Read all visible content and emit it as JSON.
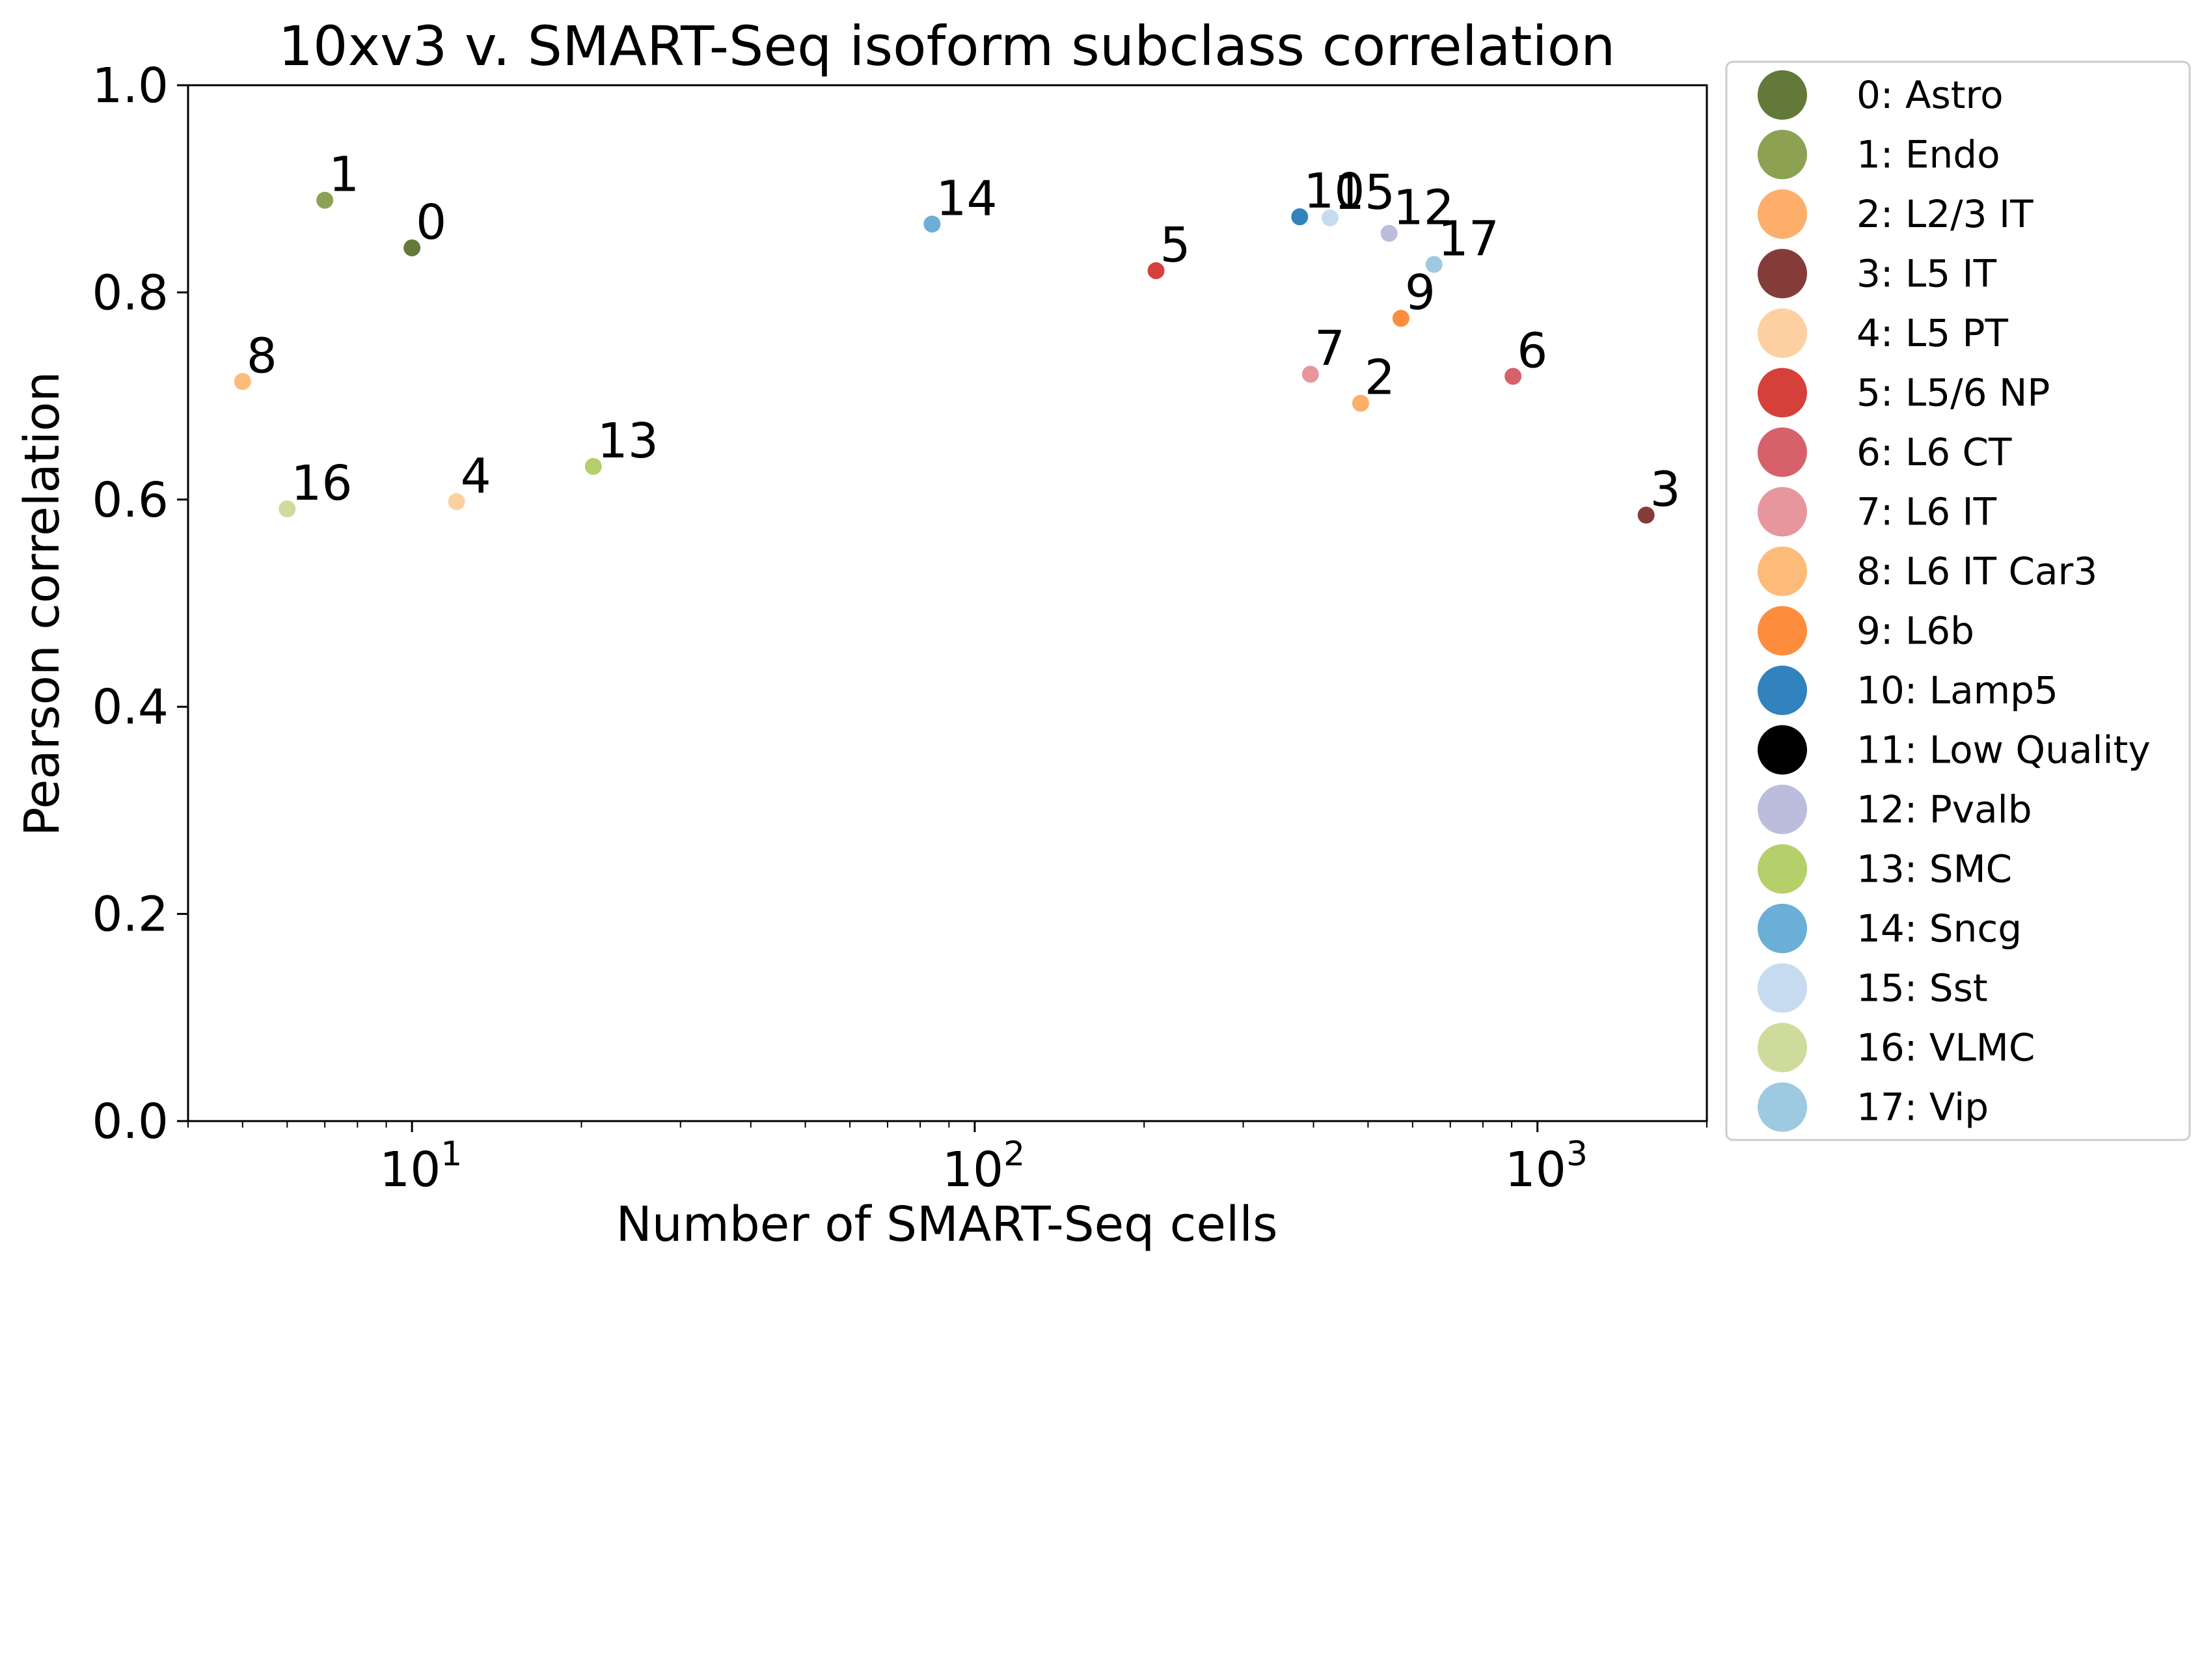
{
  "chart_data": {
    "type": "scatter",
    "title": "10xv3 v. SMART-Seq isoform subclass correlation",
    "xlabel": "Number of SMART-Seq cells",
    "ylabel": "Pearson correlation",
    "xscale": "log",
    "xlim": [
      4,
      2000
    ],
    "ylim": [
      0.0,
      1.0
    ],
    "xticks": [
      {
        "base": "10",
        "exp": "1",
        "value": 10
      },
      {
        "base": "10",
        "exp": "2",
        "value": 100
      },
      {
        "base": "10",
        "exp": "3",
        "value": 1000
      }
    ],
    "yticks": [
      "0.0",
      "0.2",
      "0.4",
      "0.6",
      "0.8",
      "1.0"
    ],
    "grid": false,
    "legend_position": "outside-right",
    "points": [
      {
        "label": "0",
        "name": "0: Astro",
        "x": 10,
        "y": 0.843,
        "color": "#637939"
      },
      {
        "label": "1",
        "name": "1: Endo",
        "x": 7,
        "y": 0.889,
        "color": "#8ca252"
      },
      {
        "label": "2",
        "name": "2: L2/3 IT",
        "x": 485,
        "y": 0.693,
        "color": "#fdae6b"
      },
      {
        "label": "3",
        "name": "3: L5 IT",
        "x": 1560,
        "y": 0.585,
        "color": "#843c39"
      },
      {
        "label": "4",
        "name": "4: L5 PT",
        "x": 12,
        "y": 0.598,
        "color": "#fdd0a2"
      },
      {
        "label": "5",
        "name": "5: L5/6 NP",
        "x": 210,
        "y": 0.821,
        "color": "#d6403a"
      },
      {
        "label": "6",
        "name": "6: L6 CT",
        "x": 905,
        "y": 0.719,
        "color": "#d6616b"
      },
      {
        "label": "7",
        "name": "7: L6 IT",
        "x": 395,
        "y": 0.721,
        "color": "#e7969c"
      },
      {
        "label": "8",
        "name": "8: L6 IT Car3",
        "x": 5,
        "y": 0.714,
        "color": "#fdbb7a"
      },
      {
        "label": "9",
        "name": "9: L6b",
        "x": 572,
        "y": 0.775,
        "color": "#fd8d3c"
      },
      {
        "label": "10",
        "name": "10: Lamp5",
        "x": 378,
        "y": 0.873,
        "color": "#3182bd"
      },
      {
        "label": "11",
        "name": "11: Low Quality",
        "x": null,
        "y": null,
        "color": "#000000"
      },
      {
        "label": "12",
        "name": "12: Pvalb",
        "x": 545,
        "y": 0.857,
        "color": "#bcbddc"
      },
      {
        "label": "13",
        "name": "13: SMC",
        "x": 21,
        "y": 0.632,
        "color": "#b5cf6b"
      },
      {
        "label": "14",
        "name": "14: Sncg",
        "x": 84,
        "y": 0.866,
        "color": "#6baed6"
      },
      {
        "label": "15",
        "name": "15: Sst",
        "x": 428,
        "y": 0.872,
        "color": "#c6dbef"
      },
      {
        "label": "16",
        "name": "16: VLMC",
        "x": 6,
        "y": 0.591,
        "color": "#cedb9c"
      },
      {
        "label": "17",
        "name": "17: Vip",
        "x": 655,
        "y": 0.827,
        "color": "#9ecae1"
      }
    ]
  }
}
